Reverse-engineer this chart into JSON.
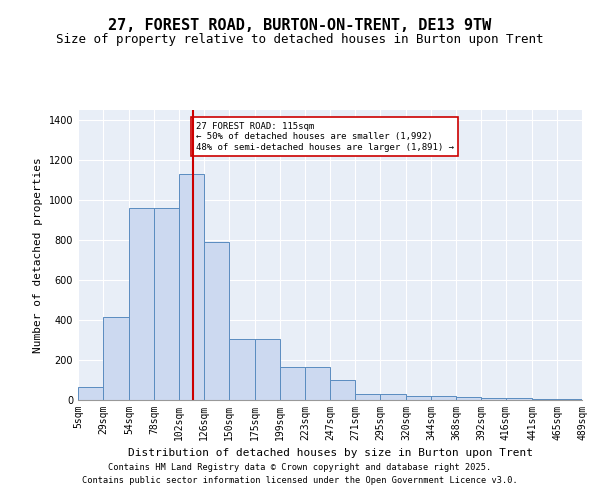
{
  "title": "27, FOREST ROAD, BURTON-ON-TRENT, DE13 9TW",
  "subtitle": "Size of property relative to detached houses in Burton upon Trent",
  "xlabel": "Distribution of detached houses by size in Burton upon Trent",
  "ylabel": "Number of detached properties",
  "bar_color": "#ccd9f0",
  "bar_edge_color": "#5a8cc0",
  "bar_values": [
    65,
    415,
    960,
    960,
    1130,
    790,
    305,
    305,
    165,
    165,
    100,
    30,
    30,
    20,
    20,
    15,
    10,
    10,
    5,
    5
  ],
  "bin_edges": [
    5,
    29,
    54,
    78,
    102,
    126,
    150,
    175,
    199,
    223,
    247,
    271,
    295,
    320,
    344,
    368,
    392,
    416,
    441,
    465,
    489
  ],
  "property_size": 115,
  "vline_color": "#cc0000",
  "annotation_text": "27 FOREST ROAD: 115sqm\n← 50% of detached houses are smaller (1,992)\n48% of semi-detached houses are larger (1,891) →",
  "annotation_box_color": "#ffffff",
  "annotation_box_edge": "#cc0000",
  "ylim": [
    0,
    1450
  ],
  "yticks": [
    0,
    200,
    400,
    600,
    800,
    1000,
    1200,
    1400
  ],
  "background_color": "#e8eef7",
  "footer_line1": "Contains HM Land Registry data © Crown copyright and database right 2025.",
  "footer_line2": "Contains public sector information licensed under the Open Government Licence v3.0.",
  "title_fontsize": 11,
  "subtitle_fontsize": 9,
  "tick_label_fontsize": 7,
  "axis_label_fontsize": 8
}
